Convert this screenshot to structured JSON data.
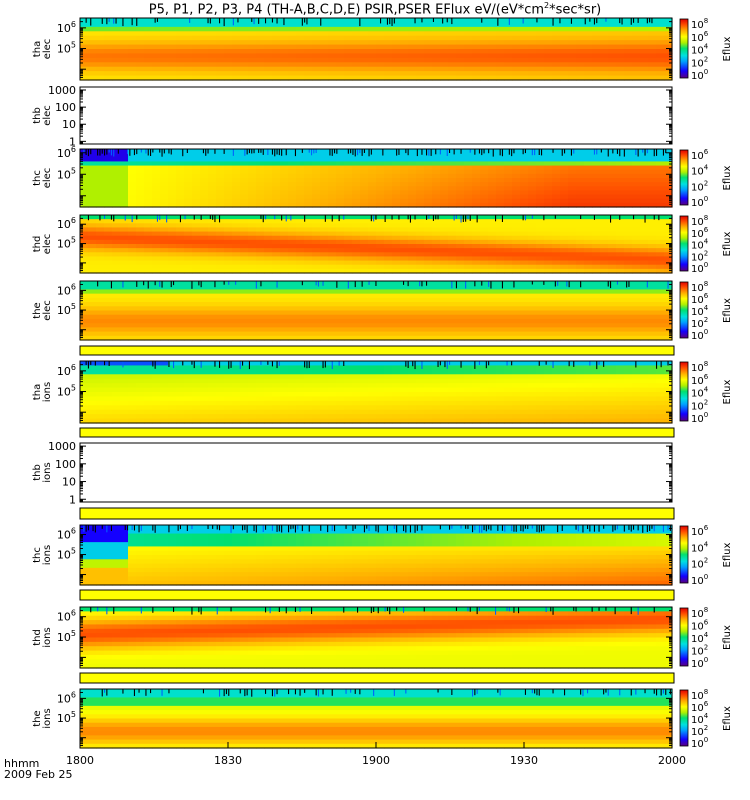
{
  "title": {
    "prefix": "P5, P1, P2, P3, P4 (TH-A,B,C,D,E) PSIR,PSER EFlux eV/(eV*cm",
    "sup": "2",
    "suffix": "*sec*sr)"
  },
  "time_axis": {
    "label": "hhmm",
    "date": "2009 Feb 25",
    "ticks": [
      "1800",
      "1830",
      "1900",
      "1930",
      "2000"
    ]
  },
  "colorbar_label": "Eflux",
  "colors": {
    "spectrum": [
      "#5a0080",
      "#1400ff",
      "#00a0ff",
      "#00e0e0",
      "#00e070",
      "#b0f000",
      "#ffff00",
      "#ffb000",
      "#ff5000",
      "#e00000"
    ]
  },
  "chart_data": [
    {
      "type": "heatmap",
      "probe": "tha",
      "species": "elec",
      "ylabel_line1": "tha",
      "ylabel_line2": "elec",
      "ylim": [
        3000,
        3000000
      ],
      "yscale": "log",
      "y_ticks": [
        {
          "text": "10",
          "exp": "6"
        },
        {
          "text": "10",
          "exp": "5"
        }
      ],
      "colorbar": {
        "ticks": [
          {
            "text": "10",
            "exp": "8"
          },
          {
            "text": "10",
            "exp": "6"
          },
          {
            "text": "10",
            "exp": "4"
          },
          {
            "text": "10",
            "exp": "2"
          },
          {
            "text": "10",
            "exp": "0"
          }
        ]
      }
    },
    {
      "type": "heatmap",
      "probe": "thb",
      "species": "elec",
      "ylabel_line1": "thb",
      "ylabel_line2": "elec",
      "ylim": [
        0.7,
        1500
      ],
      "yscale": "log",
      "empty": true,
      "y_ticks": [
        {
          "text": "1000"
        },
        {
          "text": "100"
        },
        {
          "text": "10"
        },
        {
          "text": "1"
        }
      ]
    },
    {
      "type": "heatmap",
      "probe": "thc",
      "species": "elec",
      "ylabel_line1": "thc",
      "ylabel_line2": "elec",
      "ylim": [
        3000,
        1500000
      ],
      "yscale": "log",
      "y_ticks": [
        {
          "text": "10",
          "exp": "6"
        },
        {
          "text": "10",
          "exp": "5"
        }
      ],
      "colorbar": {
        "ticks": [
          {
            "text": "10",
            "exp": "6"
          },
          {
            "text": "10",
            "exp": "4"
          },
          {
            "text": "10",
            "exp": "2"
          },
          {
            "text": "10",
            "exp": "0"
          }
        ]
      }
    },
    {
      "type": "heatmap",
      "probe": "thd",
      "species": "elec",
      "ylabel_line1": "thd",
      "ylabel_line2": "elec",
      "ylim": [
        3000,
        3000000
      ],
      "yscale": "log",
      "y_ticks": [
        {
          "text": "10",
          "exp": "6"
        },
        {
          "text": "10",
          "exp": "5"
        }
      ],
      "colorbar": {
        "ticks": [
          {
            "text": "10",
            "exp": "8"
          },
          {
            "text": "10",
            "exp": "6"
          },
          {
            "text": "10",
            "exp": "4"
          },
          {
            "text": "10",
            "exp": "2"
          },
          {
            "text": "10",
            "exp": "0"
          }
        ]
      }
    },
    {
      "type": "heatmap",
      "probe": "the",
      "species": "elec",
      "ylabel_line1": "the",
      "ylabel_line2": "elec",
      "ylim": [
        3000,
        3000000
      ],
      "yscale": "log",
      "y_ticks": [
        {
          "text": "10",
          "exp": "6"
        },
        {
          "text": "10",
          "exp": "5"
        }
      ],
      "colorbar": {
        "ticks": [
          {
            "text": "10",
            "exp": "8"
          },
          {
            "text": "10",
            "exp": "6"
          },
          {
            "text": "10",
            "exp": "4"
          },
          {
            "text": "10",
            "exp": "2"
          },
          {
            "text": "10",
            "exp": "0"
          }
        ]
      }
    },
    {
      "type": "heatmap",
      "probe": "tha",
      "species": "ions",
      "ylabel_line1": "tha",
      "ylabel_line2": "ions",
      "ylim": [
        3000,
        3000000
      ],
      "yscale": "log",
      "y_ticks": [
        {
          "text": "10",
          "exp": "6"
        },
        {
          "text": "10",
          "exp": "5"
        }
      ],
      "colorbar": {
        "ticks": [
          {
            "text": "10",
            "exp": "8"
          },
          {
            "text": "10",
            "exp": "6"
          },
          {
            "text": "10",
            "exp": "4"
          },
          {
            "text": "10",
            "exp": "2"
          },
          {
            "text": "10",
            "exp": "0"
          }
        ]
      }
    },
    {
      "type": "heatmap",
      "probe": "thb",
      "species": "ions",
      "ylabel_line1": "thb",
      "ylabel_line2": "ions",
      "ylim": [
        0.7,
        1500
      ],
      "yscale": "log",
      "empty": true,
      "y_ticks": [
        {
          "text": "1000"
        },
        {
          "text": "100"
        },
        {
          "text": "10"
        },
        {
          "text": "1"
        }
      ]
    },
    {
      "type": "heatmap",
      "probe": "thc",
      "species": "ions",
      "ylabel_line1": "thc",
      "ylabel_line2": "ions",
      "ylim": [
        3000,
        3000000
      ],
      "yscale": "log",
      "y_ticks": [
        {
          "text": "10",
          "exp": "6"
        },
        {
          "text": "10",
          "exp": "5"
        }
      ],
      "colorbar": {
        "ticks": [
          {
            "text": "10",
            "exp": "6"
          },
          {
            "text": "10",
            "exp": "4"
          },
          {
            "text": "10",
            "exp": "2"
          },
          {
            "text": "10",
            "exp": "0"
          }
        ]
      }
    },
    {
      "type": "heatmap",
      "probe": "thd",
      "species": "ions",
      "ylabel_line1": "thd",
      "ylabel_line2": "ions",
      "ylim": [
        3000,
        3000000
      ],
      "yscale": "log",
      "y_ticks": [
        {
          "text": "10",
          "exp": "6"
        },
        {
          "text": "10",
          "exp": "5"
        }
      ],
      "colorbar": {
        "ticks": [
          {
            "text": "10",
            "exp": "8"
          },
          {
            "text": "10",
            "exp": "6"
          },
          {
            "text": "10",
            "exp": "4"
          },
          {
            "text": "10",
            "exp": "2"
          },
          {
            "text": "10",
            "exp": "0"
          }
        ]
      }
    },
    {
      "type": "heatmap",
      "probe": "the",
      "species": "ions",
      "ylabel_line1": "the",
      "ylabel_line2": "ions",
      "ylim": [
        3000,
        3000000
      ],
      "yscale": "log",
      "y_ticks": [
        {
          "text": "10",
          "exp": "6"
        },
        {
          "text": "10",
          "exp": "5"
        }
      ],
      "colorbar": {
        "ticks": [
          {
            "text": "10",
            "exp": "8"
          },
          {
            "text": "10",
            "exp": "6"
          },
          {
            "text": "10",
            "exp": "4"
          },
          {
            "text": "10",
            "exp": "2"
          },
          {
            "text": "10",
            "exp": "0"
          }
        ]
      }
    }
  ]
}
